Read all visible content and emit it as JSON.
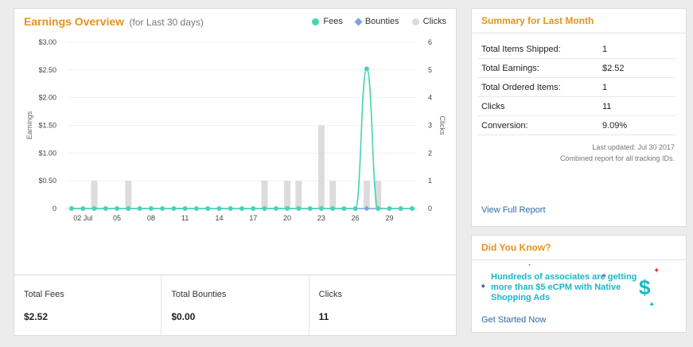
{
  "earnings": {
    "title": "Earnings Overview",
    "subtitle": "(for Last 30 days)",
    "legend": [
      {
        "name": "Fees",
        "color": "#45d6b0",
        "shape": "circle"
      },
      {
        "name": "Bounties",
        "color": "#7aa3e0",
        "shape": "diamond"
      },
      {
        "name": "Clicks",
        "color": "#dcdcdc",
        "shape": "circle"
      }
    ]
  },
  "chart_data": {
    "type": "line",
    "ylabel": "Earnings",
    "y2label": "Clicks",
    "ylim": [
      0,
      3
    ],
    "y2lim": [
      0,
      6
    ],
    "yticks": [
      "$3.00",
      "$2.50",
      "$2.00",
      "$1.50",
      "$1.00",
      "$0.50",
      "0"
    ],
    "y2ticks": [
      "6",
      "5",
      "4",
      "3",
      "2",
      "1",
      "0"
    ],
    "x": [
      "2017-07-01",
      "2017-07-02",
      "2017-07-03",
      "2017-07-04",
      "2017-07-05",
      "2017-07-06",
      "2017-07-07",
      "2017-07-08",
      "2017-07-09",
      "2017-07-10",
      "2017-07-11",
      "2017-07-12",
      "2017-07-13",
      "2017-07-14",
      "2017-07-15",
      "2017-07-16",
      "2017-07-17",
      "2017-07-18",
      "2017-07-19",
      "2017-07-20",
      "2017-07-21",
      "2017-07-22",
      "2017-07-23",
      "2017-07-24",
      "2017-07-25",
      "2017-07-26",
      "2017-07-27",
      "2017-07-28",
      "2017-07-29",
      "2017-07-30",
      "2017-07-31"
    ],
    "xtick_labels": [
      {
        "date": "2017-07-02",
        "label": "02 Jul"
      },
      {
        "date": "2017-07-05",
        "label": "05"
      },
      {
        "date": "2017-07-08",
        "label": "08"
      },
      {
        "date": "2017-07-11",
        "label": "11"
      },
      {
        "date": "2017-07-14",
        "label": "14"
      },
      {
        "date": "2017-07-17",
        "label": "17"
      },
      {
        "date": "2017-07-20",
        "label": "20"
      },
      {
        "date": "2017-07-23",
        "label": "23"
      },
      {
        "date": "2017-07-26",
        "label": "26"
      },
      {
        "date": "2017-07-29",
        "label": "29"
      }
    ],
    "series": [
      {
        "name": "Fees",
        "type": "line",
        "axis": "left",
        "color": "#45d6b0",
        "values": [
          0,
          0,
          0,
          0,
          0,
          0,
          0,
          0,
          0,
          0,
          0,
          0,
          0,
          0,
          0,
          0,
          0,
          0,
          0,
          0,
          0,
          0,
          0,
          0,
          0,
          0,
          2.52,
          0,
          0,
          0,
          0
        ]
      },
      {
        "name": "Bounties",
        "type": "line",
        "axis": "left",
        "color": "#7aa3e0",
        "values": [
          0,
          0,
          0,
          0,
          0,
          0,
          0,
          0,
          0,
          0,
          0,
          0,
          0,
          0,
          0,
          0,
          0,
          0,
          0,
          0,
          0,
          0,
          0,
          0,
          0,
          0,
          0,
          0,
          0,
          0,
          0
        ]
      },
      {
        "name": "Clicks",
        "type": "bar",
        "axis": "right",
        "color": "#dcdcdc",
        "values": [
          0,
          0,
          1,
          0,
          0,
          1,
          0,
          0,
          0,
          0,
          0,
          0,
          0,
          0,
          0,
          0,
          0,
          1,
          0,
          1,
          1,
          0,
          3,
          1,
          0,
          0,
          1,
          1,
          0,
          0,
          0
        ]
      }
    ]
  },
  "stats": [
    {
      "label": "Total Fees",
      "value": "$2.52"
    },
    {
      "label": "Total Bounties",
      "value": "$0.00"
    },
    {
      "label": "Clicks",
      "value": "11"
    }
  ],
  "summary": {
    "title": "Summary for Last Month",
    "rows": [
      {
        "label": "Total Items Shipped:",
        "value": "1"
      },
      {
        "label": "Total Earnings:",
        "value": "$2.52"
      },
      {
        "label": "Total Ordered Items:",
        "value": "1"
      },
      {
        "label": "Clicks",
        "value": "11"
      },
      {
        "label": "Conversion:",
        "value": "9.09%"
      }
    ],
    "last_updated": "Last updated: Jul 30 2017",
    "combined_note": "Combined report for all tracking IDs.",
    "view_full_report": "View Full Report"
  },
  "did_you_know": {
    "title": "Did You Know?",
    "promo_text": "Hundreds of associates are getting more than $5 eCPM with Native Shopping Ads",
    "dollar_icon": "dollar-sign",
    "sparkle_colors": [
      "#3ab54a",
      "#9b3fd0",
      "#e23b3b",
      "#2a6aa8",
      "#19b8c8"
    ],
    "get_started": "Get Started Now"
  }
}
